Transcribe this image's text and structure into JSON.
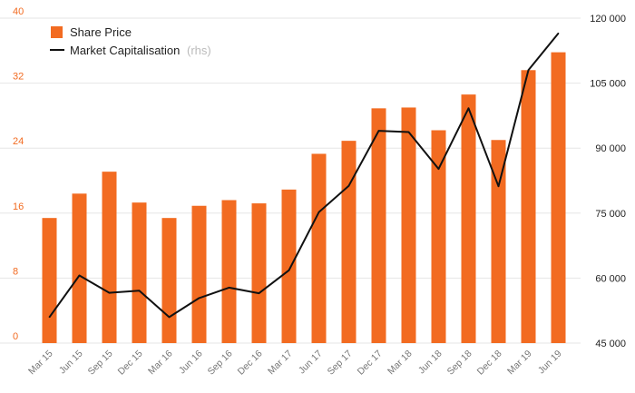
{
  "chart_data": {
    "type": "bar",
    "categories": [
      "Mar 15",
      "Jun 15",
      "Sep 15",
      "Dec 15",
      "Mar 16",
      "Jun 16",
      "Sep 16",
      "Dec 16",
      "Mar 17",
      "Jun 17",
      "Sep 17",
      "Dec 17",
      "Mar 18",
      "Jun 18",
      "Sep 18",
      "Dec 18",
      "Mar 19",
      "Jun 19"
    ],
    "series": [
      {
        "name": "Share Price",
        "type": "bar",
        "axis": "left",
        "color": "#f26b21",
        "values": [
          15.4,
          18.4,
          21.1,
          17.3,
          15.4,
          16.9,
          17.6,
          17.2,
          18.9,
          23.3,
          24.9,
          28.9,
          29.0,
          26.2,
          30.6,
          25.0,
          33.6,
          35.8
        ]
      },
      {
        "name": "Market Capitalisation",
        "name_suffix": "(rhs)",
        "type": "line",
        "axis": "right",
        "color": "#111111",
        "values": [
          51000,
          60600,
          56600,
          57100,
          51000,
          55400,
          57800,
          56500,
          61800,
          75200,
          81300,
          94000,
          93700,
          85200,
          99200,
          81200,
          108000,
          116500
        ]
      }
    ],
    "y_left": {
      "ylim": [
        0,
        40
      ],
      "ticks": [
        0,
        8,
        16,
        24,
        32,
        40
      ]
    },
    "y_right": {
      "ylim": [
        45000,
        120000
      ],
      "ticks": [
        "45 000",
        "60 000",
        "75 000",
        "90 000",
        "105 000",
        "120 000"
      ],
      "tick_values": [
        45000,
        60000,
        75000,
        90000,
        105000,
        120000
      ]
    },
    "legend_position": "top-left",
    "grid": true,
    "title": "",
    "xlabel": "",
    "ylabel": ""
  }
}
